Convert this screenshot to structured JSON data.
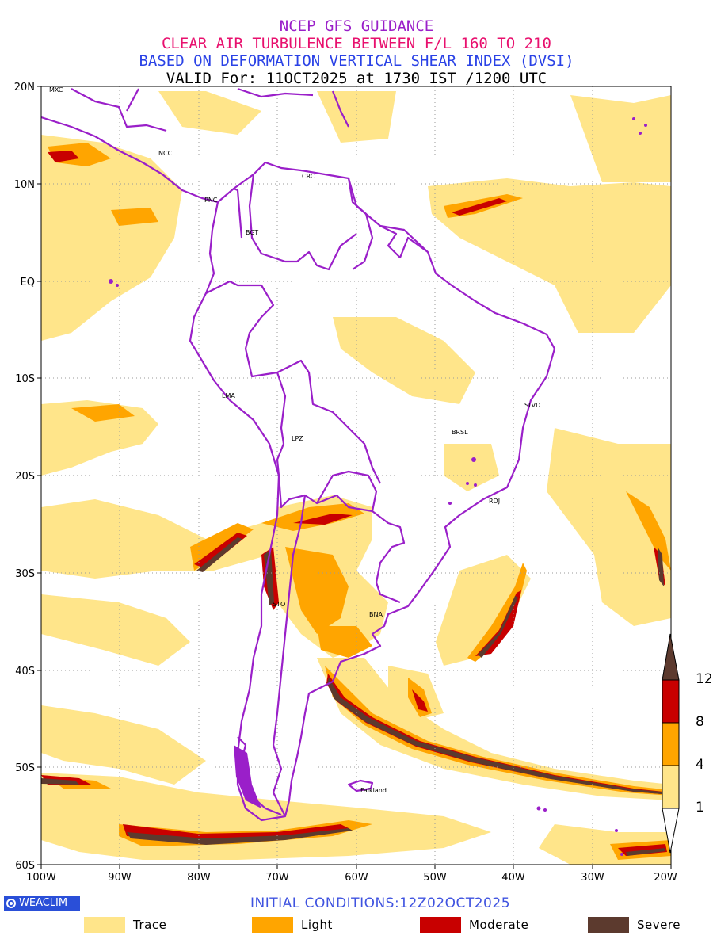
{
  "title": {
    "line1": "NCEP GFS GUIDANCE",
    "line2": "CLEAR AIR TURBULENCE BETWEEN F/L 160 TO 210",
    "line3": "BASED ON DEFORMATION VERTICAL SHEAR INDEX (DVSI)",
    "line4": "VALID For: 11OCT2025 at 1730 IST /1200 UTC"
  },
  "axes": {
    "lat_labels": [
      "20N",
      "10N",
      "EQ",
      "10S",
      "20S",
      "30S",
      "40S",
      "50S",
      "60S"
    ],
    "lon_labels": [
      "100W",
      "90W",
      "80W",
      "70W",
      "60W",
      "50W",
      "40W",
      "30W",
      "20W"
    ],
    "lat_range": [
      -60,
      20
    ],
    "lon_range": [
      -100,
      -20
    ],
    "grid": true
  },
  "cities": [
    "MXC",
    "NCC",
    "CRC",
    "PNC",
    "BGT",
    "LMA",
    "LPZ",
    "BRSL",
    "SLVD",
    "RDJ",
    "STO",
    "BNA",
    "Falkland"
  ],
  "colorbar": {
    "levels": [
      "1",
      "4",
      "8",
      "12"
    ],
    "colors": [
      "#ffe58a",
      "#ffa500",
      "#c80000",
      "#5c3a2e"
    ]
  },
  "footer": {
    "logo": "WEACLIM",
    "initial_conditions": "INITIAL CONDITIONS:12Z02OCT2025"
  },
  "legend": [
    {
      "label": "Trace",
      "color": "#ffe58a"
    },
    {
      "label": "Light",
      "color": "#ffa500"
    },
    {
      "label": "Moderate",
      "color": "#c80000"
    },
    {
      "label": "Severe",
      "color": "#5c3a2e"
    }
  ],
  "colors": {
    "boundaries": "#9a1fc9",
    "trace": "#ffe58a",
    "light": "#ffa500",
    "moderate": "#c80000",
    "severe": "#5c3a2e"
  }
}
